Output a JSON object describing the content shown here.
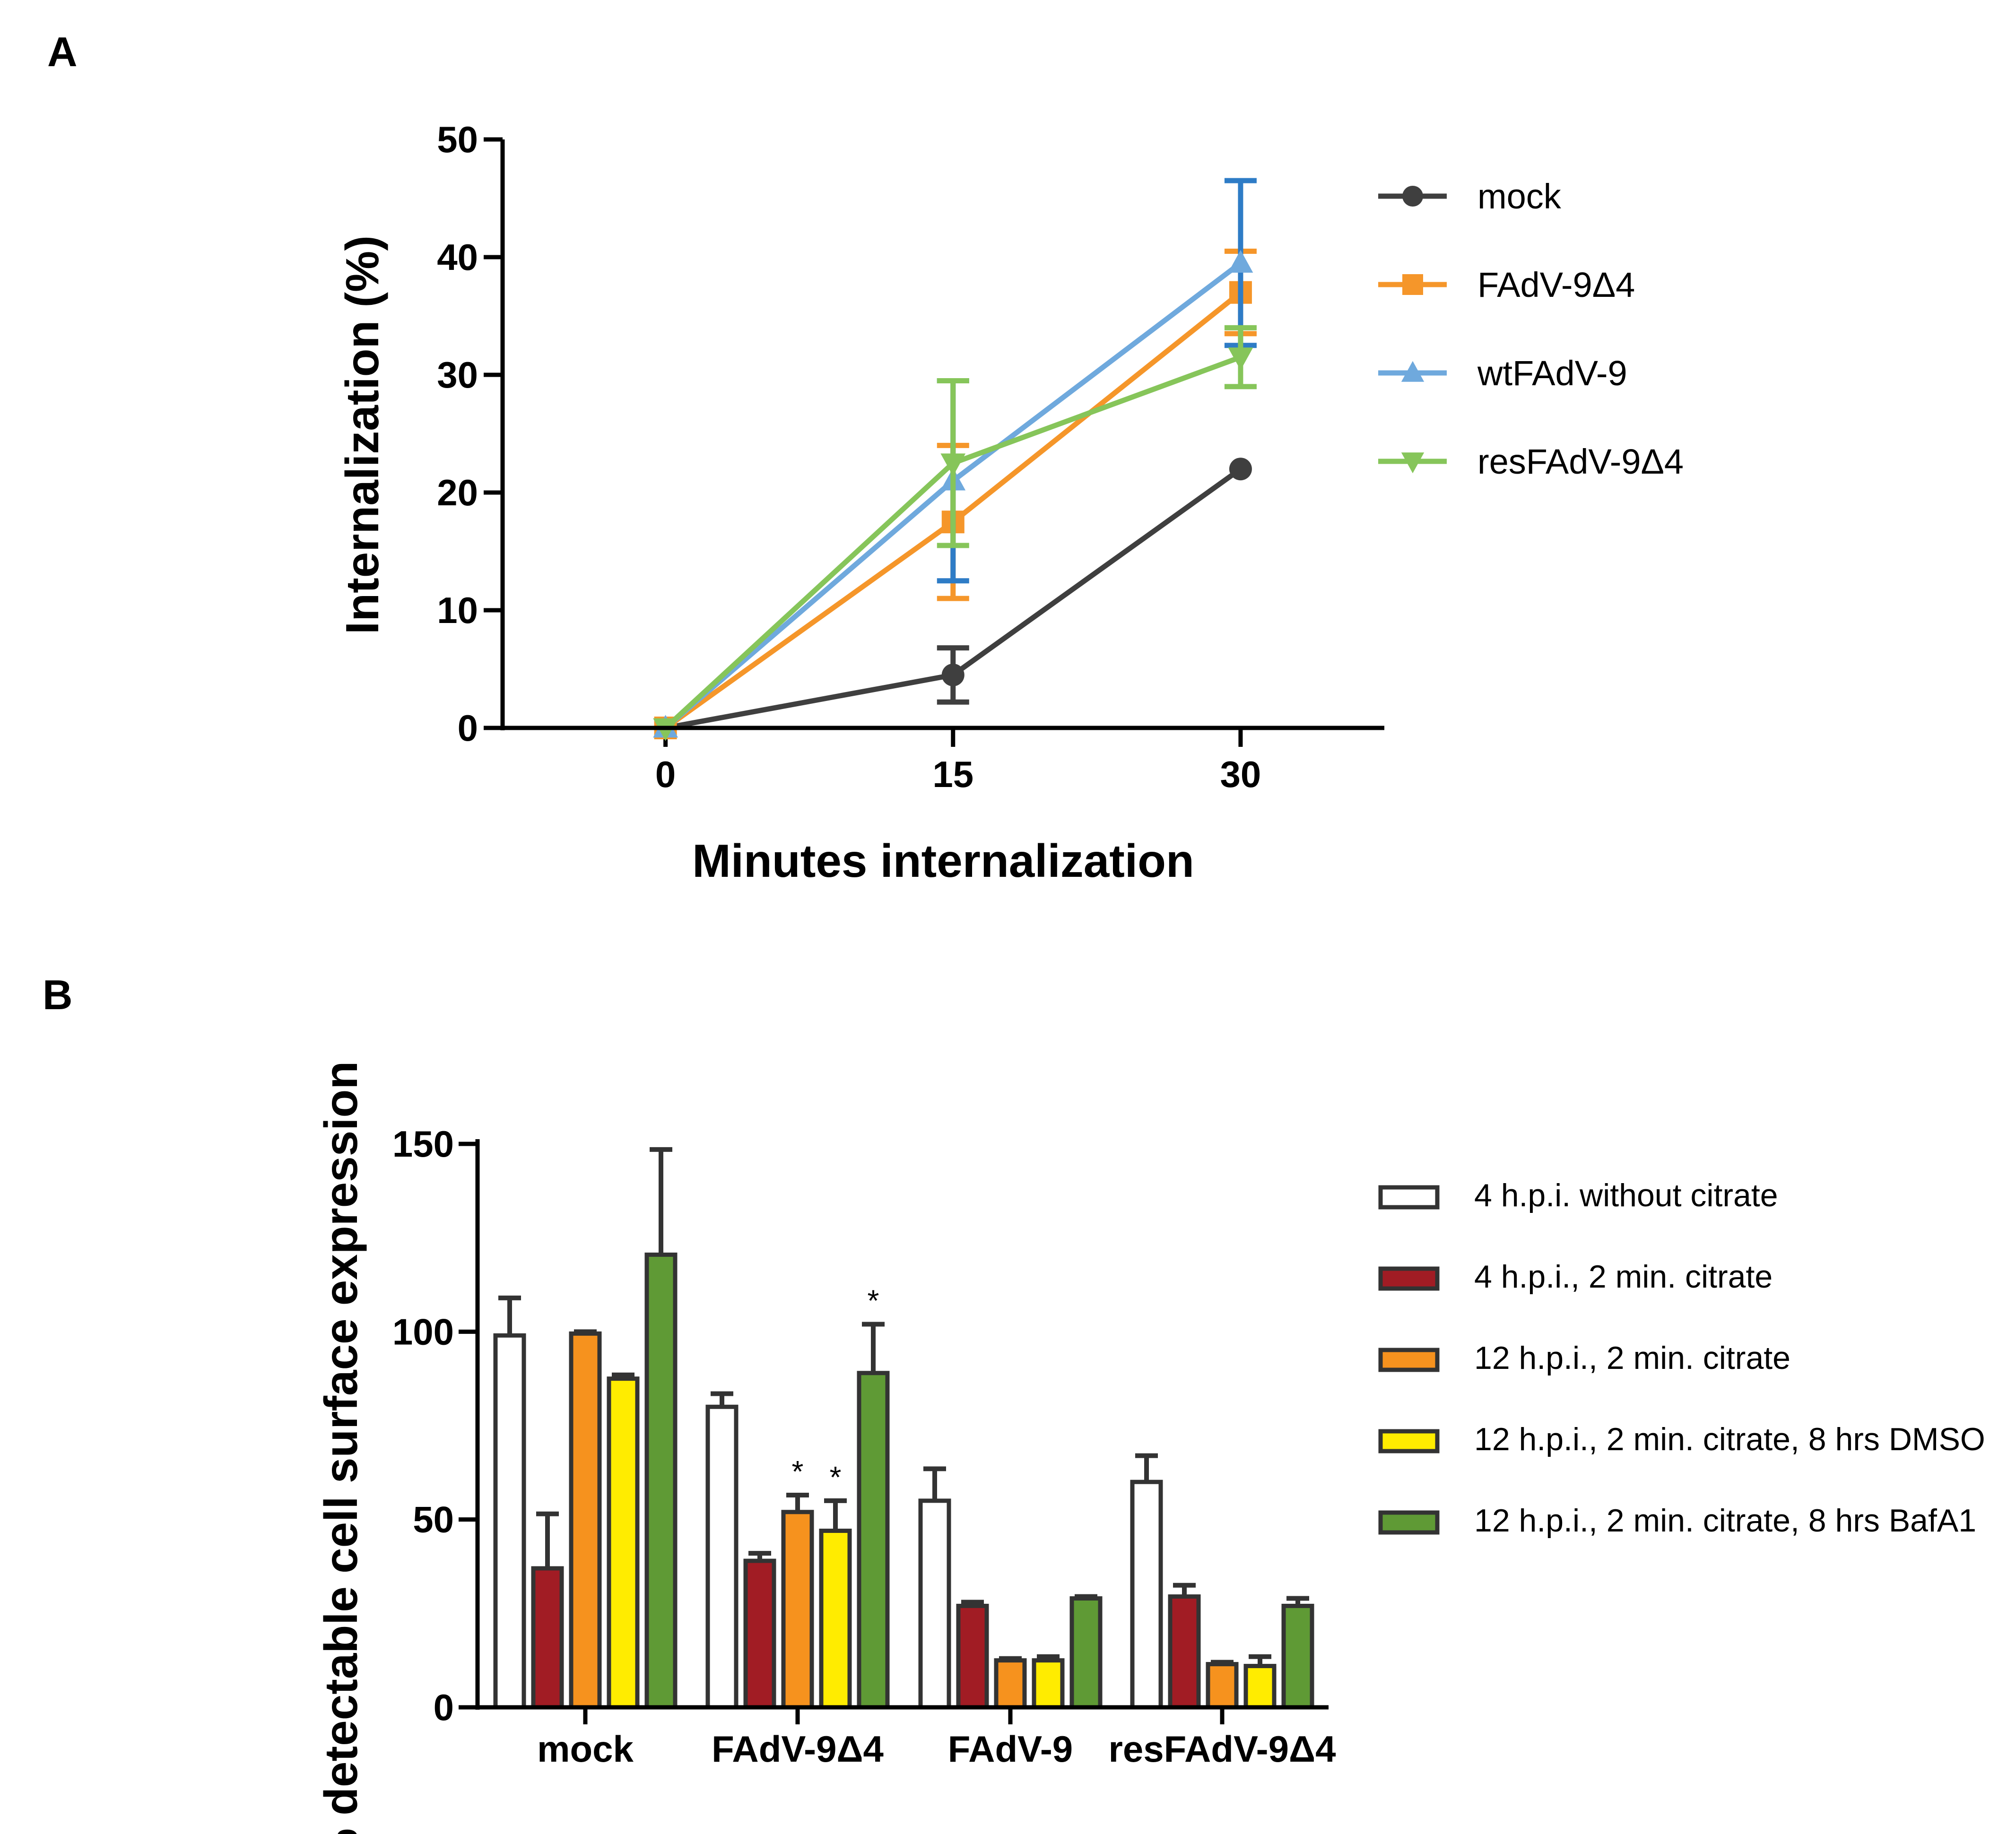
{
  "panel_labels": {
    "a": "A",
    "b": "B"
  },
  "colors": {
    "axis": "#000000",
    "mock_line": "#3f3f3f",
    "fadv_d4_line": "#f5962a",
    "wt_line": "#6fa9dd",
    "wt_err": "#2e7cc6",
    "res_line": "#86c55a",
    "bar_white": "#ffffff",
    "bar_red": "#a11c24",
    "bar_orange": "#f6921e",
    "bar_yellow": "#ffec00",
    "bar_green": "#5f9a35",
    "bar_outline": "#333333"
  },
  "chart_data": [
    {
      "type": "line",
      "panel": "A",
      "xlabel": "Minutes internalization",
      "ylabel": "Internalization (%)",
      "x": [
        0,
        15,
        30
      ],
      "x_tick_labels": [
        "0",
        "15",
        "30"
      ],
      "xlim": [
        -8.5,
        37.5
      ],
      "ylim": [
        0,
        50
      ],
      "y_ticks": [
        0,
        10,
        20,
        30,
        40,
        50
      ],
      "y_tick_labels": [
        "0",
        "10",
        "20",
        "30",
        "40",
        "50"
      ],
      "legend_position": "right",
      "series": [
        {
          "name": "mock",
          "marker": "circle",
          "color": "#3f3f3f",
          "err_color": "#3f3f3f",
          "values": [
            0,
            4.5,
            22
          ],
          "errors": [
            0,
            2.3,
            0
          ]
        },
        {
          "name": "FAdV-9Δ4",
          "marker": "square",
          "color": "#f5962a",
          "err_color": "#f5962a",
          "values": [
            0,
            17.5,
            37
          ],
          "errors": [
            0,
            6.5,
            3.5
          ]
        },
        {
          "name": "wtFAdV-9",
          "marker": "triangle-up",
          "color": "#6fa9dd",
          "err_color": "#2e7cc6",
          "values": [
            0,
            21,
            39.5
          ],
          "errors": [
            0,
            8.5,
            7
          ]
        },
        {
          "name": "resFAdV-9Δ4",
          "marker": "triangle-down",
          "color": "#86c55a",
          "err_color": "#86c55a",
          "values": [
            0,
            22.5,
            31.5
          ],
          "errors": [
            0,
            7,
            2.5
          ]
        }
      ]
    },
    {
      "type": "bar",
      "panel": "B",
      "xlabel": "",
      "ylabel": "% detectable cell surface expression",
      "categories": [
        "mock",
        "FAdV-9Δ4",
        "FAdV-9",
        "resFAdV-9Δ4"
      ],
      "ylim": [
        0,
        150
      ],
      "y_ticks": [
        0,
        50,
        100,
        150
      ],
      "y_tick_labels": [
        "0",
        "50",
        "100",
        "150"
      ],
      "legend_position": "right",
      "series": [
        {
          "name": "4 h.p.i. without citrate",
          "color": "#ffffff",
          "values": [
            99,
            80,
            55,
            60
          ],
          "errors": [
            10,
            3.5,
            8.5,
            7
          ],
          "significant": [
            false,
            false,
            false,
            false
          ]
        },
        {
          "name": "4 h.p.i., 2 min. citrate",
          "color": "#a11c24",
          "values": [
            37,
            39,
            27,
            29.5
          ],
          "errors": [
            14.5,
            2,
            1,
            3
          ],
          "significant": [
            false,
            false,
            false,
            false
          ]
        },
        {
          "name": "12 h.p.i., 2 min. citrate",
          "color": "#f6921e",
          "values": [
            99.5,
            52,
            12.5,
            11.5
          ],
          "errors": [
            0.5,
            4.5,
            0.5,
            0.5
          ],
          "significant": [
            false,
            true,
            false,
            false
          ]
        },
        {
          "name": "12 h.p.i., 2 min. citrate, 8 hrs DMSO",
          "color": "#ffec00",
          "values": [
            87.5,
            47,
            12.5,
            11
          ],
          "errors": [
            1,
            8,
            1,
            2.5
          ],
          "significant": [
            false,
            true,
            false,
            false
          ]
        },
        {
          "name": "12 h.p.i., 2 min. citrate, 8 hrs BafA1",
          "color": "#5f9a35",
          "values": [
            120.5,
            89,
            29,
            27
          ],
          "errors": [
            28,
            13,
            0.5,
            2
          ],
          "significant": [
            false,
            true,
            false,
            false
          ]
        }
      ],
      "significance_marker": "*"
    }
  ]
}
